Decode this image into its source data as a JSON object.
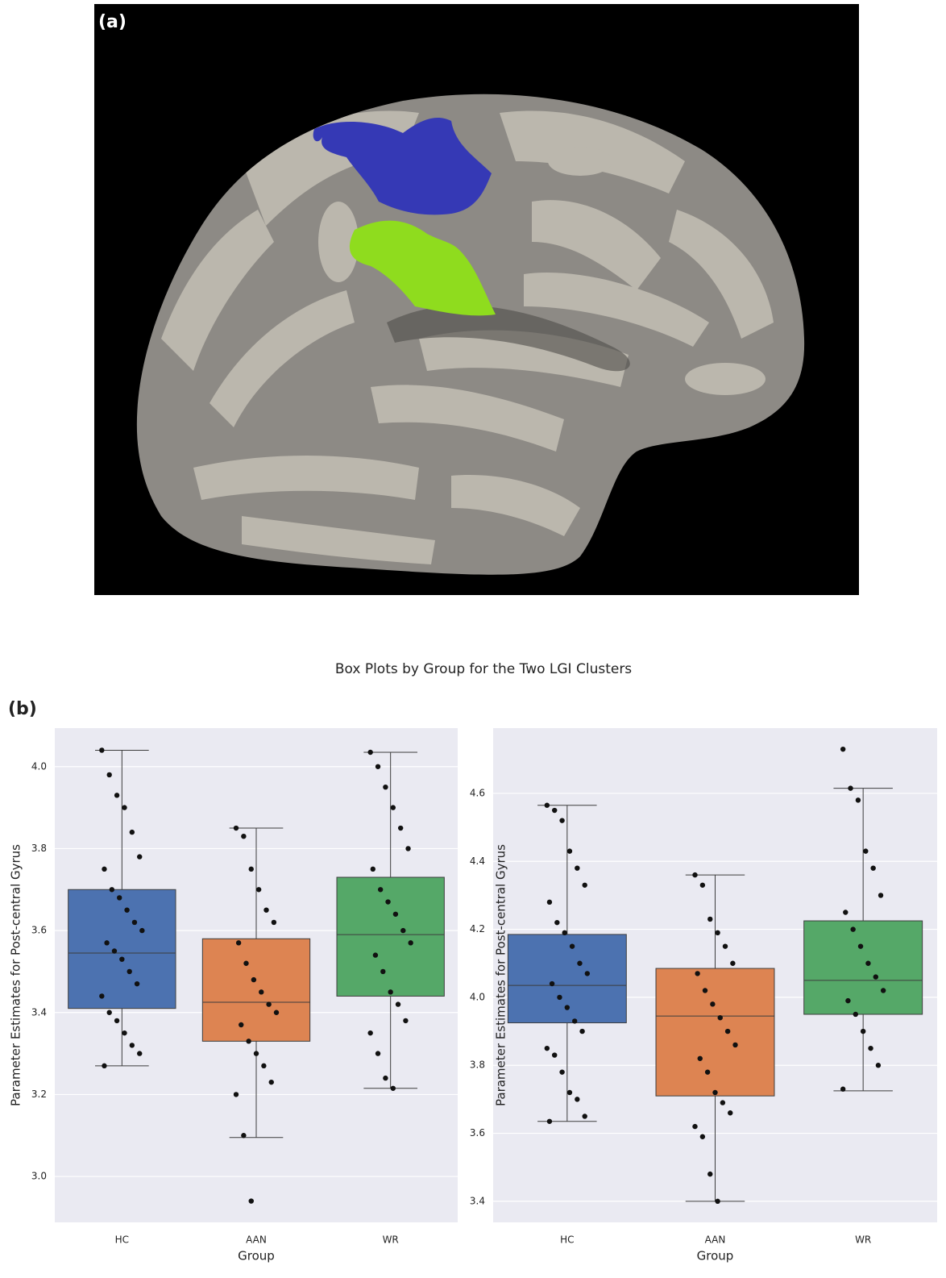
{
  "panel_a_label": "(a)",
  "panel_b_label": "(b)",
  "suptitle": "Box Plots by Group for the Two LGI Clusters",
  "chart_data": [
    {
      "type": "box",
      "ylabel": "Parameter Estimates for Post-central Gyrus",
      "xlabel": "Group",
      "categories": [
        "HC",
        "AAN",
        "WR"
      ],
      "colors": [
        "#4c72b0",
        "#dd8452",
        "#55a868"
      ],
      "boxes": [
        {
          "whislo": 3.27,
          "q1": 3.41,
          "med": 3.545,
          "q3": 3.7,
          "whishi": 4.04
        },
        {
          "whislo": 3.095,
          "q1": 3.33,
          "med": 3.425,
          "q3": 3.58,
          "whishi": 3.85
        },
        {
          "whislo": 3.215,
          "q1": 3.44,
          "med": 3.59,
          "q3": 3.73,
          "whishi": 4.035
        }
      ],
      "points": [
        [
          4.04,
          3.98,
          3.93,
          3.9,
          3.84,
          3.78,
          3.75,
          3.7,
          3.68,
          3.65,
          3.62,
          3.6,
          3.57,
          3.55,
          3.53,
          3.5,
          3.47,
          3.44,
          3.4,
          3.38,
          3.35,
          3.32,
          3.3,
          3.27
        ],
        [
          3.85,
          3.83,
          3.75,
          3.7,
          3.65,
          3.62,
          3.57,
          3.52,
          3.48,
          3.45,
          3.42,
          3.4,
          3.37,
          3.33,
          3.3,
          3.27,
          3.23,
          3.2,
          3.1,
          2.94
        ],
        [
          4.035,
          4.0,
          3.95,
          3.9,
          3.85,
          3.8,
          3.75,
          3.7,
          3.67,
          3.64,
          3.6,
          3.57,
          3.54,
          3.5,
          3.45,
          3.42,
          3.38,
          3.35,
          3.3,
          3.24,
          3.215
        ]
      ],
      "ylim": [
        2.888,
        4.094
      ],
      "yticks": [
        {
          "value": 3.0,
          "label": "3.0"
        },
        3.2,
        3.4,
        3.6,
        3.8,
        {
          "value": 4.0,
          "label": "4.0"
        }
      ],
      "grid": true
    },
    {
      "type": "box",
      "ylabel": "Parameter Estimates for Post-central Gyrus",
      "xlabel": "Group",
      "categories": [
        "HC",
        "AAN",
        "WR"
      ],
      "colors": [
        "#4c72b0",
        "#dd8452",
        "#55a868"
      ],
      "boxes": [
        {
          "whislo": 3.635,
          "q1": 3.925,
          "med": 4.035,
          "q3": 4.185,
          "whishi": 4.565
        },
        {
          "whislo": 3.4,
          "q1": 3.71,
          "med": 3.945,
          "q3": 4.085,
          "whishi": 4.36
        },
        {
          "whislo": 3.725,
          "q1": 3.95,
          "med": 4.05,
          "q3": 4.225,
          "whishi": 4.615
        }
      ],
      "points": [
        [
          4.565,
          4.55,
          4.52,
          4.43,
          4.38,
          4.33,
          4.28,
          4.22,
          4.19,
          4.15,
          4.1,
          4.07,
          4.04,
          4.0,
          3.97,
          3.93,
          3.9,
          3.85,
          3.83,
          3.78,
          3.72,
          3.7,
          3.65,
          3.635
        ],
        [
          4.36,
          4.33,
          4.23,
          4.19,
          4.15,
          4.1,
          4.07,
          4.02,
          3.98,
          3.94,
          3.9,
          3.86,
          3.82,
          3.78,
          3.72,
          3.69,
          3.66,
          3.62,
          3.59,
          3.48,
          3.4
        ],
        [
          4.73,
          4.615,
          4.58,
          4.43,
          4.38,
          4.3,
          4.25,
          4.2,
          4.15,
          4.1,
          4.06,
          4.02,
          3.99,
          3.95,
          3.9,
          3.85,
          3.8,
          3.73
        ]
      ],
      "ylim": [
        3.338,
        4.792
      ],
      "yticks": [
        3.4,
        3.6,
        3.8,
        {
          "value": 4.0,
          "label": "4.0"
        },
        4.2,
        4.4,
        4.6
      ],
      "grid": true
    }
  ]
}
